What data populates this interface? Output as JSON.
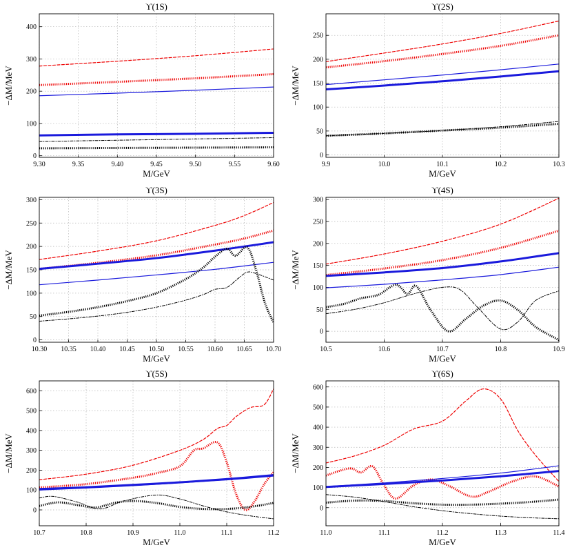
{
  "chart_data": [
    {
      "type": "line",
      "title": "ϒ(1S)",
      "xlabel": "M/GeV",
      "ylabel": "−ΔM/MeV",
      "xlim": [
        9.3,
        9.6
      ],
      "ylim": [
        -5,
        440
      ],
      "xticks": [
        "9.30",
        "9.35",
        "9.40",
        "9.45",
        "9.50",
        "9.55",
        "9.60"
      ],
      "yticks": [
        "0",
        "100",
        "200",
        "300",
        "400"
      ],
      "grid": true,
      "series": [
        {
          "name": "red-dashed",
          "color": "#ee0000",
          "style": "dashed",
          "width": 1.2,
          "x": [
            9.3,
            9.4,
            9.5,
            9.6
          ],
          "values": [
            278,
            293,
            310,
            331
          ]
        },
        {
          "name": "red-thick",
          "color": "#ee0000",
          "style": "dotted-thick",
          "width": 3,
          "x": [
            9.3,
            9.4,
            9.5,
            9.6
          ],
          "values": [
            219,
            229,
            240,
            253
          ]
        },
        {
          "name": "blue-thin",
          "color": "#1a1adc",
          "style": "solid",
          "width": 1.2,
          "x": [
            9.3,
            9.4,
            9.5,
            9.6
          ],
          "values": [
            186,
            194,
            203,
            213
          ]
        },
        {
          "name": "blue-thick",
          "color": "#1a1adc",
          "style": "solid",
          "width": 3,
          "x": [
            9.3,
            9.4,
            9.5,
            9.6
          ],
          "values": [
            63,
            66,
            68,
            71
          ]
        },
        {
          "name": "black-dashdot",
          "color": "#000000",
          "style": "dashdot",
          "width": 1,
          "x": [
            9.3,
            9.4,
            9.5,
            9.6
          ],
          "values": [
            44,
            48,
            52,
            56
          ]
        },
        {
          "name": "black-thick",
          "color": "#000000",
          "style": "dotted-thick",
          "width": 3,
          "x": [
            9.3,
            9.4,
            9.5,
            9.6
          ],
          "values": [
            23,
            24,
            25,
            26
          ]
        }
      ]
    },
    {
      "type": "line",
      "title": "ϒ(2S)",
      "xlabel": "M/GeV",
      "ylabel": "−ΔM/MeV",
      "xlim": [
        9.9,
        10.3
      ],
      "ylim": [
        -5,
        295
      ],
      "xticks": [
        "9.9",
        "10.0",
        "10.1",
        "10.2",
        "10.3"
      ],
      "yticks": [
        "0",
        "50",
        "100",
        "150",
        "200",
        "250"
      ],
      "grid": true,
      "series": [
        {
          "name": "red-dashed",
          "color": "#ee0000",
          "style": "dashed",
          "width": 1.2,
          "x": [
            9.9,
            10.0,
            10.1,
            10.2,
            10.3
          ],
          "values": [
            195,
            213,
            232,
            254,
            280
          ]
        },
        {
          "name": "red-thick",
          "color": "#ee0000",
          "style": "dotted-thick",
          "width": 3,
          "x": [
            9.9,
            10.0,
            10.1,
            10.2,
            10.3
          ],
          "values": [
            183,
            196,
            211,
            228,
            250
          ]
        },
        {
          "name": "blue-thin",
          "color": "#1a1adc",
          "style": "solid",
          "width": 1.2,
          "x": [
            9.9,
            10.0,
            10.1,
            10.2,
            10.3
          ],
          "values": [
            147,
            157,
            167,
            178,
            190
          ]
        },
        {
          "name": "blue-thick",
          "color": "#1a1adc",
          "style": "solid",
          "width": 3,
          "x": [
            9.9,
            10.0,
            10.1,
            10.2,
            10.3
          ],
          "values": [
            137,
            145,
            154,
            164,
            175
          ]
        },
        {
          "name": "black-dashdot",
          "color": "#000000",
          "style": "dashdot",
          "width": 1,
          "x": [
            9.9,
            10.0,
            10.1,
            10.2,
            10.3
          ],
          "values": [
            40,
            45,
            51,
            59,
            70
          ]
        },
        {
          "name": "black-thick",
          "color": "#000000",
          "style": "dotted-thick",
          "width": 3,
          "x": [
            9.9,
            10.0,
            10.1,
            10.2,
            10.3
          ],
          "values": [
            40,
            45,
            51,
            57,
            65
          ]
        }
      ]
    },
    {
      "type": "line",
      "title": "ϒ(3S)",
      "xlabel": "M/GeV",
      "ylabel": "−ΔM/MeV",
      "xlim": [
        10.3,
        10.7
      ],
      "ylim": [
        -5,
        305
      ],
      "xticks": [
        "10.30",
        "10.35",
        "10.40",
        "10.45",
        "10.50",
        "10.55",
        "10.60",
        "10.65",
        "10.70"
      ],
      "yticks": [
        "0",
        "50",
        "100",
        "150",
        "200",
        "250",
        "300"
      ],
      "grid": true,
      "series": [
        {
          "name": "red-dashed",
          "color": "#ee0000",
          "style": "dashed",
          "width": 1.2,
          "x": [
            10.3,
            10.4,
            10.5,
            10.6,
            10.65,
            10.7
          ],
          "values": [
            172,
            190,
            212,
            245,
            266,
            294
          ]
        },
        {
          "name": "red-thick",
          "color": "#ee0000",
          "style": "dotted-thick",
          "width": 3,
          "x": [
            10.3,
            10.4,
            10.5,
            10.6,
            10.65,
            10.7
          ],
          "values": [
            152,
            165,
            181,
            204,
            217,
            234
          ]
        },
        {
          "name": "blue-thick",
          "color": "#1a1adc",
          "style": "solid",
          "width": 3,
          "x": [
            10.3,
            10.4,
            10.5,
            10.6,
            10.7
          ],
          "values": [
            152,
            163,
            175,
            191,
            209
          ]
        },
        {
          "name": "blue-thin",
          "color": "#1a1adc",
          "style": "solid",
          "width": 1.2,
          "x": [
            10.3,
            10.4,
            10.5,
            10.6,
            10.7
          ],
          "values": [
            118,
            128,
            139,
            151,
            166
          ]
        },
        {
          "name": "black-thick",
          "color": "#000000",
          "style": "dotted-thick",
          "width": 3,
          "x": [
            10.3,
            10.35,
            10.4,
            10.45,
            10.5,
            10.55,
            10.58,
            10.6,
            10.62,
            10.635,
            10.655,
            10.67,
            10.685,
            10.7
          ],
          "values": [
            52,
            60,
            70,
            83,
            100,
            130,
            155,
            178,
            195,
            180,
            198,
            150,
            80,
            37
          ]
        },
        {
          "name": "black-dashdot",
          "color": "#000000",
          "style": "dashdot",
          "width": 1,
          "x": [
            10.3,
            10.35,
            10.4,
            10.45,
            10.5,
            10.55,
            10.58,
            10.6,
            10.62,
            10.64,
            10.655,
            10.67,
            10.7
          ],
          "values": [
            40,
            45,
            51,
            59,
            70,
            85,
            97,
            108,
            112,
            132,
            145,
            142,
            128
          ]
        }
      ]
    },
    {
      "type": "line",
      "title": "ϒ(4S)",
      "xlabel": "M/GeV",
      "ylabel": "−ΔM/MeV",
      "xlim": [
        10.5,
        10.9
      ],
      "ylim": [
        -25,
        305
      ],
      "xticks": [
        "10.5",
        "10.6",
        "10.7",
        "10.8",
        "10.9"
      ],
      "yticks": [
        "0",
        "50",
        "100",
        "150",
        "200",
        "250",
        "300"
      ],
      "grid": true,
      "series": [
        {
          "name": "red-dashed",
          "color": "#ee0000",
          "style": "dashed",
          "width": 1.2,
          "x": [
            10.5,
            10.6,
            10.7,
            10.8,
            10.9
          ],
          "values": [
            153,
            176,
            205,
            244,
            303
          ]
        },
        {
          "name": "red-thick",
          "color": "#ee0000",
          "style": "dotted-thick",
          "width": 3,
          "x": [
            10.5,
            10.6,
            10.7,
            10.8,
            10.9
          ],
          "values": [
            128,
            143,
            162,
            190,
            229
          ]
        },
        {
          "name": "blue-thick",
          "color": "#1a1adc",
          "style": "solid",
          "width": 3,
          "x": [
            10.5,
            10.6,
            10.7,
            10.8,
            10.9
          ],
          "values": [
            126,
            134,
            144,
            159,
            178
          ]
        },
        {
          "name": "blue-thin",
          "color": "#1a1adc",
          "style": "solid",
          "width": 1.2,
          "x": [
            10.5,
            10.6,
            10.7,
            10.8,
            10.9
          ],
          "values": [
            99,
            107,
            117,
            129,
            146
          ]
        },
        {
          "name": "black-thick",
          "color": "#000000",
          "style": "dotted-thick",
          "width": 3,
          "x": [
            10.5,
            10.53,
            10.56,
            10.59,
            10.62,
            10.64,
            10.655,
            10.68,
            10.71,
            10.74,
            10.77,
            10.8,
            10.83,
            10.86,
            10.9
          ],
          "values": [
            55,
            62,
            75,
            83,
            106,
            85,
            103,
            48,
            0,
            28,
            58,
            70,
            48,
            10,
            -20
          ]
        },
        {
          "name": "black-dashdot",
          "color": "#000000",
          "style": "dashdot",
          "width": 1,
          "x": [
            10.5,
            10.55,
            10.6,
            10.65,
            10.7,
            10.73,
            10.76,
            10.8,
            10.83,
            10.86,
            10.9
          ],
          "values": [
            40,
            50,
            65,
            85,
            100,
            95,
            55,
            5,
            22,
            70,
            92
          ]
        }
      ]
    },
    {
      "type": "line",
      "title": "ϒ(5S)",
      "xlabel": "M/GeV",
      "ylabel": "−ΔM/MeV",
      "xlim": [
        10.7,
        11.2
      ],
      "ylim": [
        -80,
        650
      ],
      "xticks": [
        "10.7",
        "10.8",
        "10.9",
        "11.0",
        "11.1",
        "11.2"
      ],
      "yticks": [
        "0",
        "100",
        "200",
        "300",
        "400",
        "500",
        "600"
      ],
      "grid": true,
      "series": [
        {
          "name": "red-dashed",
          "color": "#ee0000",
          "style": "dashed",
          "width": 1.2,
          "x": [
            10.7,
            10.8,
            10.9,
            11.0,
            11.05,
            11.08,
            11.1,
            11.12,
            11.15,
            11.18,
            11.2
          ],
          "values": [
            152,
            180,
            225,
            300,
            355,
            410,
            425,
            470,
            515,
            530,
            610
          ]
        },
        {
          "name": "red-thick",
          "color": "#ee0000",
          "style": "dotted-thick",
          "width": 3,
          "x": [
            10.7,
            10.8,
            10.9,
            10.95,
            11.0,
            11.03,
            11.05,
            11.08,
            11.1,
            11.12,
            11.14,
            11.16,
            11.18,
            11.2
          ],
          "values": [
            113,
            130,
            162,
            185,
            220,
            300,
            310,
            340,
            240,
            80,
            0,
            45,
            130,
            190
          ]
        },
        {
          "name": "blue-thick",
          "color": "#1a1adc",
          "style": "solid",
          "width": 3,
          "x": [
            10.7,
            10.8,
            10.9,
            11.0,
            11.1,
            11.2
          ],
          "values": [
            105,
            114,
            126,
            139,
            155,
            175
          ]
        },
        {
          "name": "blue-thin",
          "color": "#1a1adc",
          "style": "solid",
          "width": 1.2,
          "x": [
            10.7,
            10.8,
            10.9,
            11.0,
            11.1,
            11.2
          ],
          "values": [
            100,
            110,
            122,
            136,
            151,
            170
          ]
        },
        {
          "name": "black-dashdot",
          "color": "#000000",
          "style": "dashdot",
          "width": 1,
          "x": [
            10.7,
            10.73,
            10.78,
            10.83,
            10.88,
            10.95,
            11.0,
            11.05,
            11.1,
            11.15,
            11.2
          ],
          "values": [
            60,
            68,
            40,
            5,
            45,
            75,
            55,
            20,
            -10,
            -30,
            -45
          ]
        },
        {
          "name": "black-thick",
          "color": "#000000",
          "style": "dotted-thick",
          "width": 3,
          "x": [
            10.7,
            10.74,
            10.78,
            10.82,
            10.86,
            10.9,
            10.95,
            11.0,
            11.05,
            11.1,
            11.15,
            11.2
          ],
          "values": [
            20,
            38,
            25,
            12,
            35,
            45,
            35,
            15,
            5,
            5,
            15,
            35
          ]
        }
      ]
    },
    {
      "type": "line",
      "title": "ϒ(6S)",
      "xlabel": "M/GeV",
      "ylabel": "−ΔM/MeV",
      "xlim": [
        11.0,
        11.4
      ],
      "ylim": [
        -90,
        630
      ],
      "xticks": [
        "11.0",
        "11.1",
        "11.2",
        "11.3",
        "11.4"
      ],
      "yticks": [
        "0",
        "100",
        "200",
        "300",
        "400",
        "500",
        "600"
      ],
      "grid": true,
      "series": [
        {
          "name": "red-dashed",
          "color": "#ee0000",
          "style": "dashed",
          "width": 1.2,
          "x": [
            11.0,
            11.05,
            11.1,
            11.15,
            11.2,
            11.24,
            11.27,
            11.3,
            11.33,
            11.36,
            11.4
          ],
          "values": [
            222,
            258,
            310,
            390,
            430,
            530,
            590,
            540,
            380,
            260,
            130
          ]
        },
        {
          "name": "red-thick",
          "color": "#ee0000",
          "style": "dotted-thick",
          "width": 3,
          "x": [
            11.0,
            11.04,
            11.06,
            11.08,
            11.1,
            11.12,
            11.15,
            11.18,
            11.21,
            11.25,
            11.28,
            11.32,
            11.36,
            11.4
          ],
          "values": [
            160,
            195,
            175,
            205,
            110,
            45,
            110,
            140,
            110,
            55,
            80,
            130,
            155,
            105
          ]
        },
        {
          "name": "blue-thin",
          "color": "#1a1adc",
          "style": "solid",
          "width": 1.2,
          "x": [
            11.0,
            11.1,
            11.2,
            11.3,
            11.4
          ],
          "values": [
            105,
            123,
            145,
            172,
            208
          ]
        },
        {
          "name": "blue-thick",
          "color": "#1a1adc",
          "style": "solid",
          "width": 3,
          "x": [
            11.0,
            11.1,
            11.2,
            11.3,
            11.4
          ],
          "values": [
            103,
            118,
            135,
            156,
            182
          ]
        },
        {
          "name": "black-thick",
          "color": "#000000",
          "style": "dotted-thick",
          "width": 3,
          "x": [
            11.0,
            11.05,
            11.1,
            11.15,
            11.2,
            11.25,
            11.3,
            11.35,
            11.4
          ],
          "values": [
            25,
            35,
            33,
            22,
            15,
            15,
            20,
            28,
            40
          ]
        },
        {
          "name": "black-dashdot",
          "color": "#000000",
          "style": "dashdot",
          "width": 1,
          "x": [
            11.0,
            11.05,
            11.1,
            11.15,
            11.2,
            11.25,
            11.3,
            11.35,
            11.4
          ],
          "values": [
            65,
            52,
            30,
            5,
            -15,
            -30,
            -42,
            -50,
            -55
          ]
        }
      ]
    }
  ]
}
